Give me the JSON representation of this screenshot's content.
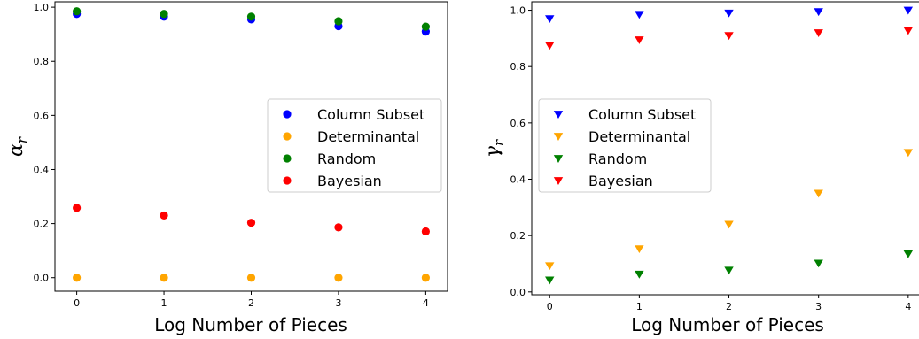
{
  "chart_data": [
    {
      "type": "scatter",
      "marker": "circle",
      "x": [
        0,
        1,
        2,
        3,
        4
      ],
      "xlabel": "Log Number of Pieces",
      "ylabel_main": "α",
      "ylabel_sub": "r",
      "xlim": [
        -0.25,
        4.25
      ],
      "ylim": [
        -0.05,
        1.02
      ],
      "xticks": [
        0,
        1,
        2,
        3,
        4
      ],
      "yticks": [
        0.0,
        0.2,
        0.4,
        0.6,
        0.8,
        1.0
      ],
      "grid": false,
      "legend": "center-right",
      "series": [
        {
          "name": "Column Subset",
          "color": "#0000ff",
          "values": [
            0.975,
            0.965,
            0.955,
            0.93,
            0.91
          ]
        },
        {
          "name": "Determinantal",
          "color": "#ffa500",
          "values": [
            0.0,
            0.0,
            0.0,
            0.0,
            0.0
          ]
        },
        {
          "name": "Random",
          "color": "#008000",
          "values": [
            0.985,
            0.975,
            0.965,
            0.948,
            0.928
          ]
        },
        {
          "name": "Bayesian",
          "color": "#ff0000",
          "values": [
            0.258,
            0.23,
            0.203,
            0.186,
            0.171
          ]
        }
      ]
    },
    {
      "type": "scatter",
      "marker": "triangle-down",
      "x": [
        0,
        1,
        2,
        3,
        4
      ],
      "xlabel": "Log Number of Pieces",
      "ylabel_main": "γ",
      "ylabel_sub": "r",
      "xlim": [
        -0.2,
        4.15
      ],
      "ylim": [
        -0.01,
        1.03
      ],
      "xticks": [
        0,
        1,
        2,
        3,
        4
      ],
      "yticks": [
        0.0,
        0.2,
        0.4,
        0.6,
        0.8,
        1.0
      ],
      "grid": false,
      "legend": "center-left",
      "series": [
        {
          "name": "Column Subset",
          "color": "#0000ff",
          "values": [
            0.97,
            0.985,
            0.99,
            0.995,
            1.0
          ]
        },
        {
          "name": "Determinantal",
          "color": "#ffa500",
          "values": [
            0.093,
            0.153,
            0.24,
            0.35,
            0.495
          ]
        },
        {
          "name": "Random",
          "color": "#008000",
          "values": [
            0.042,
            0.063,
            0.077,
            0.102,
            0.135
          ]
        },
        {
          "name": "Bayesian",
          "color": "#ff0000",
          "values": [
            0.875,
            0.895,
            0.91,
            0.92,
            0.928
          ]
        }
      ]
    }
  ]
}
